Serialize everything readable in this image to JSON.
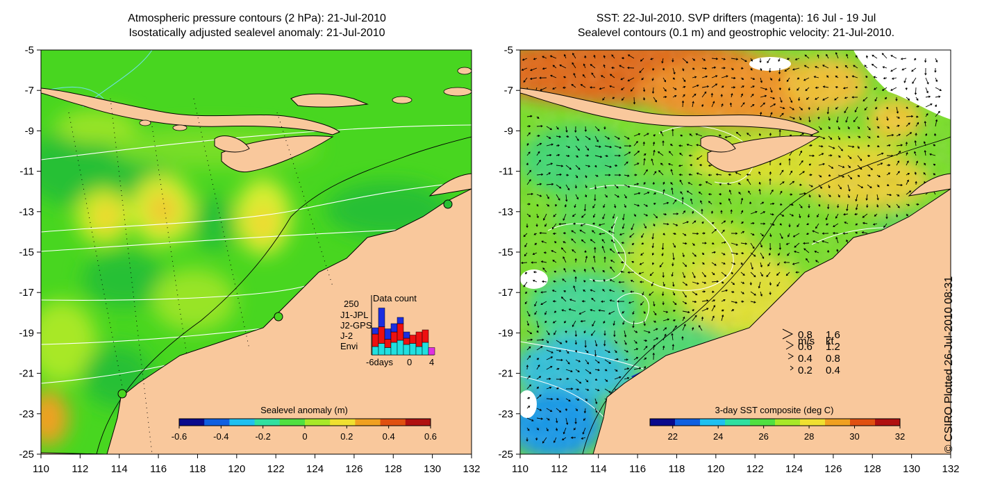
{
  "left_panel": {
    "title_line1": "Atmospheric pressure contours (2 hPa): 21-Jul-2010",
    "title_line2": "Isostatically adjusted sealevel anomaly: 21-Jul-2010",
    "colorbar": {
      "title": "Sealevel anomaly (m)",
      "range": [
        -0.6,
        0.6
      ],
      "tick_labels": [
        "-0.6",
        "-0.4",
        "-0.2",
        "0",
        "0.2",
        "0.4",
        "0.6"
      ],
      "colors": [
        "#0a0a8c",
        "#1060e0",
        "#20c0f0",
        "#30e0a0",
        "#50e040",
        "#a8e828",
        "#f0e030",
        "#f0a020",
        "#e05010",
        "#b01010"
      ]
    },
    "inset": {
      "title": "Data count",
      "y_max_label": "250",
      "x_tick_labels": [
        "-6days",
        "0",
        "4"
      ],
      "legend": [
        {
          "label": "J1-JPL",
          "color": "#1a2ee0"
        },
        {
          "label": "J2-GPS",
          "color": "#e030e0"
        },
        {
          "label": "J-2",
          "color": "#ee1010"
        },
        {
          "label": "Envi",
          "color": "#20e0e0"
        }
      ],
      "bins": [
        {
          "envi": 40,
          "j2": 60,
          "j1": 30
        },
        {
          "envi": 55,
          "j2": 80,
          "j1": 90
        },
        {
          "envi": 35,
          "j2": 40,
          "j1": 50
        },
        {
          "envi": 60,
          "j2": 50,
          "j1": 40
        },
        {
          "envi": 70,
          "j2": 80,
          "j1": 30
        },
        {
          "envi": 50,
          "j2": 30,
          "j1": 30
        },
        {
          "envi": 55,
          "j2": 40,
          "j1": 0
        },
        {
          "envi": 40,
          "j2": 70,
          "j1": 0
        },
        {
          "envi": 60,
          "j2": 60,
          "j1": 0
        },
        {
          "envi": 0,
          "j2": 0,
          "j1": 0,
          "gps": 35
        }
      ]
    }
  },
  "right_panel": {
    "title_line1": "SST: 22-Jul-2010. SVP drifters (magenta): 16 Jul - 19 Jul",
    "title_line2": "Sealevel contours (0.1 m) and geostrophic velocity: 21-Jul-2010.",
    "colorbar": {
      "title": "3-day SST composite (deg C)",
      "range": [
        21,
        32
      ],
      "tick_labels": [
        "22",
        "24",
        "26",
        "28",
        "30",
        "32"
      ],
      "colors": [
        "#0a0a8c",
        "#1060e0",
        "#20c0f0",
        "#30e0a0",
        "#50e040",
        "#a8e828",
        "#f0e030",
        "#f0a020",
        "#e05010",
        "#b01010"
      ]
    },
    "velocity_legend": {
      "header_ms": "m/s",
      "header_kt": "kt",
      "rows": [
        {
          "ms": "0.8",
          "kt": "1.6"
        },
        {
          "ms": "0.6",
          "kt": "1.2"
        },
        {
          "ms": "0.4",
          "kt": "0.8"
        },
        {
          "ms": "0.2",
          "kt": "0.4"
        }
      ]
    }
  },
  "axes": {
    "y_tick_labels": [
      "-5",
      "-7",
      "-9",
      "-11",
      "-13",
      "-15",
      "-17",
      "-19",
      "-21",
      "-23",
      "-25"
    ],
    "x_tick_labels": [
      "110",
      "112",
      "114",
      "116",
      "118",
      "120",
      "122",
      "124",
      "126",
      "128",
      "130",
      "132"
    ]
  },
  "colors": {
    "land": "#f9c89c",
    "ocean_base": "#48d620",
    "contour": "#ffffff",
    "coastline": "#000000"
  },
  "copyright": "© CSIRO Plotted 26-Jul-2010 08:31"
}
